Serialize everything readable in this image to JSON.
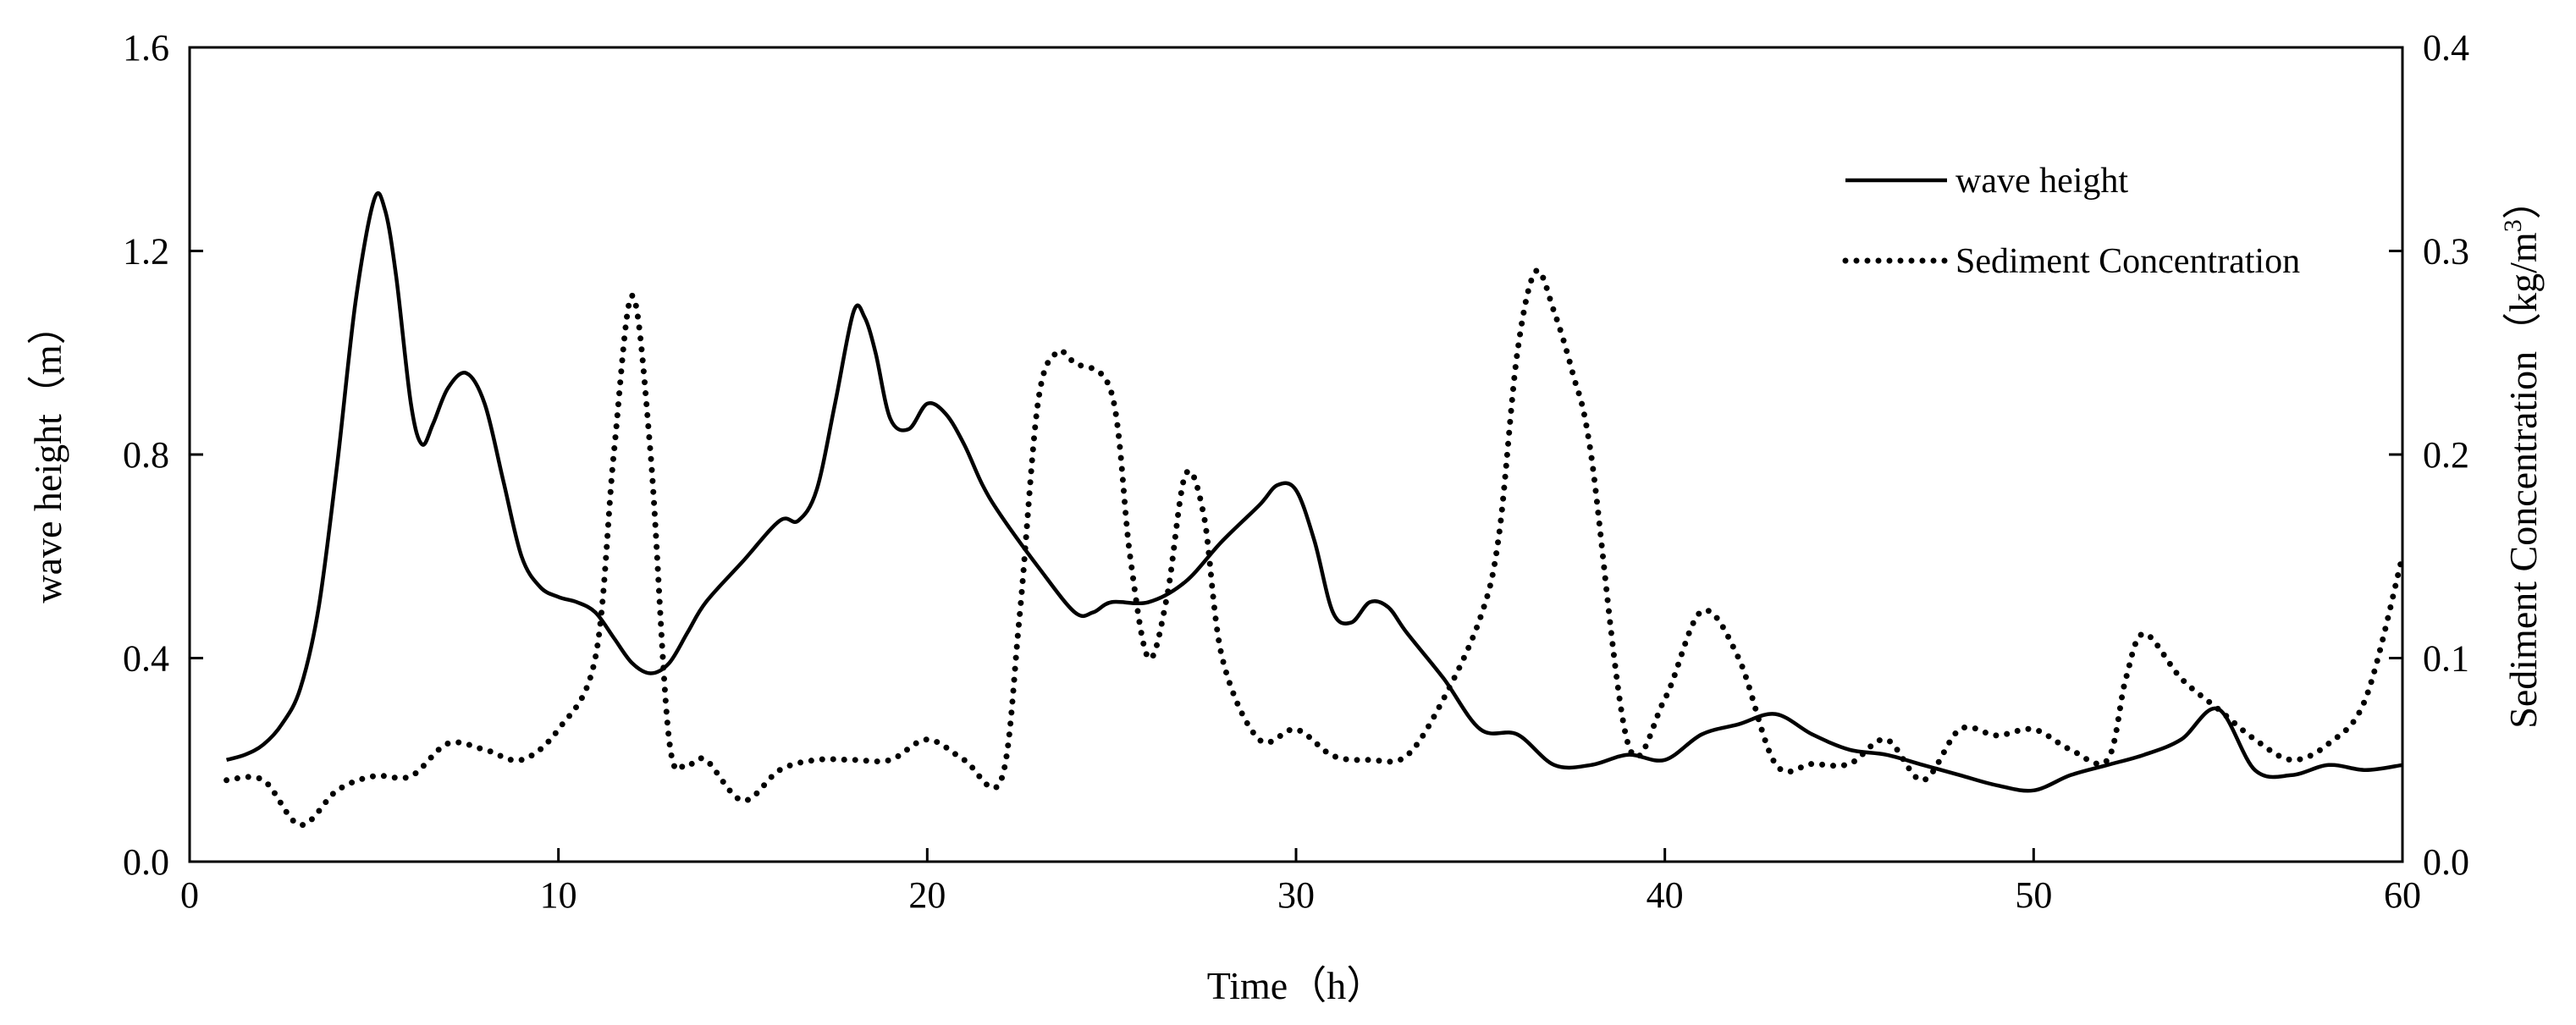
{
  "chart_data": {
    "type": "line",
    "xlabel": "Time（h）",
    "ylabel_left": "wave height（m）",
    "ylabel_right": "Sediment Concentration（kg/m",
    "ylabel_right_sup": "3",
    "ylabel_right_close": "）",
    "xlim": [
      0,
      60
    ],
    "ylim_left": [
      0,
      1.6
    ],
    "ylim_right": [
      0,
      0.4
    ],
    "x_ticks": [
      "0",
      "10",
      "20",
      "30",
      "40",
      "50",
      "60"
    ],
    "y_left_ticks": [
      "0.0",
      "0.4",
      "0.8",
      "1.2",
      "1.6"
    ],
    "y_right_ticks": [
      "0.0",
      "0.1",
      "0.2",
      "0.3",
      "0.4"
    ],
    "grid": false,
    "legend_position": "top-right",
    "series": [
      {
        "name": "wave height",
        "axis": "left",
        "style": "solid",
        "color": "#000000",
        "x": [
          1,
          1.5,
          2,
          2.5,
          3,
          3.5,
          4,
          4.5,
          5,
          5.3,
          5.6,
          6,
          6.3,
          6.6,
          7,
          7.5,
          8,
          8.5,
          9,
          9.5,
          10,
          10.5,
          11,
          11.5,
          12,
          12.5,
          13,
          13.5,
          14,
          15,
          16,
          16.5,
          17,
          17.5,
          18,
          18.3,
          18.6,
          19,
          19.5,
          20,
          20.5,
          21,
          21.5,
          22,
          23,
          24,
          24.5,
          25,
          26,
          27,
          28,
          29,
          29.5,
          30,
          30.5,
          31,
          31.5,
          32,
          32.5,
          33,
          34,
          35,
          36,
          37,
          38,
          39,
          40,
          41,
          42,
          43,
          44,
          45,
          46,
          47,
          48,
          49,
          50,
          51,
          52,
          53,
          54,
          55,
          56,
          57,
          58,
          59,
          60
        ],
        "values": [
          0.2,
          0.21,
          0.23,
          0.27,
          0.34,
          0.5,
          0.78,
          1.1,
          1.3,
          1.28,
          1.15,
          0.9,
          0.82,
          0.86,
          0.93,
          0.96,
          0.9,
          0.75,
          0.6,
          0.54,
          0.52,
          0.51,
          0.49,
          0.44,
          0.39,
          0.37,
          0.39,
          0.45,
          0.51,
          0.59,
          0.67,
          0.67,
          0.73,
          0.9,
          1.08,
          1.07,
          1.0,
          0.87,
          0.85,
          0.9,
          0.88,
          0.82,
          0.74,
          0.68,
          0.58,
          0.49,
          0.49,
          0.51,
          0.51,
          0.55,
          0.63,
          0.7,
          0.74,
          0.73,
          0.63,
          0.49,
          0.47,
          0.51,
          0.5,
          0.45,
          0.36,
          0.26,
          0.25,
          0.19,
          0.19,
          0.21,
          0.2,
          0.25,
          0.27,
          0.29,
          0.25,
          0.22,
          0.21,
          0.19,
          0.17,
          0.15,
          0.14,
          0.17,
          0.19,
          0.21,
          0.24,
          0.3,
          0.18,
          0.17,
          0.19,
          0.18,
          0.19
        ]
      },
      {
        "name": "Sediment Concentration",
        "axis": "right",
        "style": "dotted",
        "color": "#000000",
        "x": [
          1,
          2,
          3,
          4,
          5,
          6,
          7,
          8,
          9,
          10,
          11,
          11.5,
          12,
          12.5,
          13,
          13.5,
          14,
          15,
          16,
          17,
          18,
          19,
          20,
          21,
          22,
          22.5,
          23,
          23.5,
          24,
          25,
          25.5,
          26,
          26.5,
          27,
          27.5,
          28,
          29,
          30,
          31,
          32,
          33,
          34,
          35,
          35.5,
          36,
          36.5,
          37,
          37.5,
          38,
          39,
          40,
          41,
          42,
          43,
          44,
          45,
          46,
          47,
          48,
          49,
          50,
          51,
          52,
          52.5,
          53,
          54,
          55,
          56,
          57,
          58,
          59,
          60
        ],
        "values": [
          0.04,
          0.04,
          0.018,
          0.035,
          0.042,
          0.042,
          0.058,
          0.055,
          0.05,
          0.065,
          0.1,
          0.2,
          0.278,
          0.2,
          0.06,
          0.048,
          0.05,
          0.03,
          0.045,
          0.05,
          0.05,
          0.05,
          0.06,
          0.05,
          0.04,
          0.12,
          0.225,
          0.25,
          0.245,
          0.23,
          0.15,
          0.1,
          0.13,
          0.19,
          0.17,
          0.1,
          0.06,
          0.065,
          0.052,
          0.05,
          0.052,
          0.08,
          0.12,
          0.16,
          0.25,
          0.29,
          0.27,
          0.24,
          0.2,
          0.058,
          0.08,
          0.123,
          0.1,
          0.048,
          0.048,
          0.048,
          0.06,
          0.04,
          0.065,
          0.062,
          0.065,
          0.055,
          0.05,
          0.09,
          0.112,
          0.09,
          0.075,
          0.06,
          0.05,
          0.058,
          0.08,
          0.15
        ]
      }
    ]
  }
}
